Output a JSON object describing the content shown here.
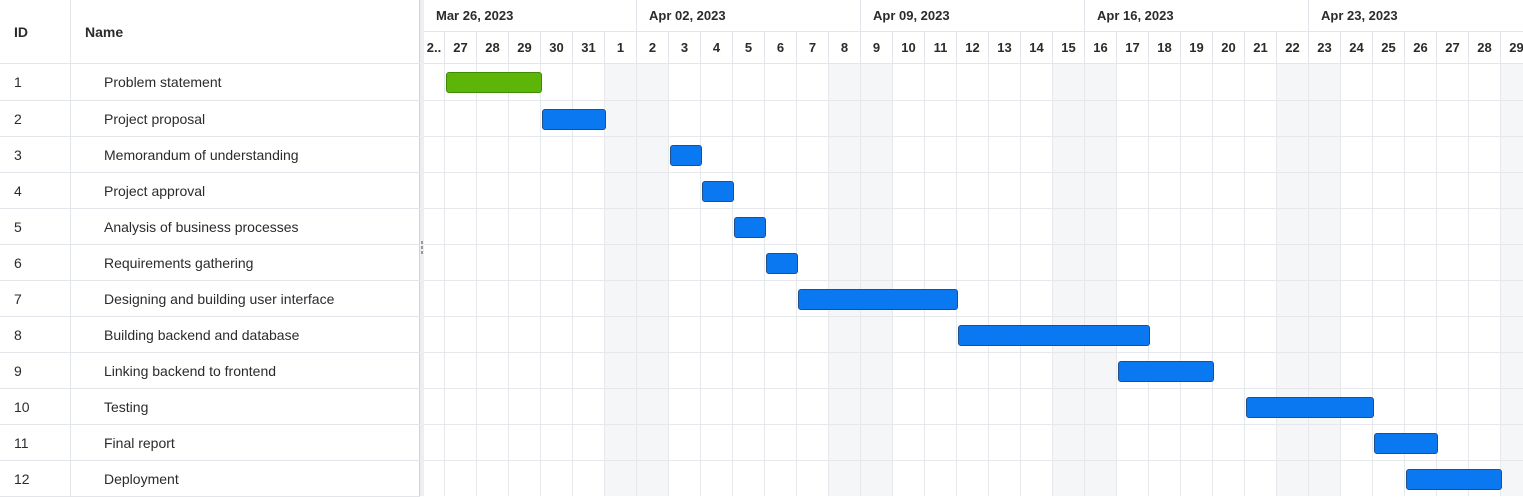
{
  "grid": {
    "columns": {
      "id": "ID",
      "name": "Name"
    }
  },
  "timeline": {
    "weeks": [
      "Apr 02, 2023",
      "Apr 09, 2023",
      "Apr 16, 2023",
      "Apr 23, 2023"
    ],
    "first_week": "Mar 26, 2023",
    "days": [
      "2..",
      "27",
      "28",
      "29",
      "30",
      "31",
      "1",
      "2",
      "3",
      "4",
      "5",
      "6",
      "7",
      "8",
      "9",
      "10",
      "11",
      "12",
      "13",
      "14",
      "15",
      "16",
      "17",
      "18",
      "19",
      "20",
      "21",
      "22",
      "23",
      "24",
      "25",
      "26",
      "27",
      "28",
      "29"
    ],
    "weekend_indices": [
      6,
      13,
      20,
      27,
      34
    ]
  },
  "colors": {
    "summary_bar": "#5db508",
    "task_bar": "#0a78f0"
  },
  "tasks": [
    {
      "id": "1",
      "name": "Problem statement",
      "start_index": 1,
      "duration_days": 3,
      "color": "summary"
    },
    {
      "id": "2",
      "name": "Project proposal",
      "start_index": 4,
      "duration_days": 2,
      "color": "task"
    },
    {
      "id": "3",
      "name": "Memorandum of understanding",
      "start_index": 8,
      "duration_days": 1,
      "color": "task"
    },
    {
      "id": "4",
      "name": "Project approval",
      "start_index": 9,
      "duration_days": 1,
      "color": "task"
    },
    {
      "id": "5",
      "name": "Analysis of business processes",
      "start_index": 10,
      "duration_days": 1,
      "color": "task"
    },
    {
      "id": "6",
      "name": "Requirements gathering",
      "start_index": 11,
      "duration_days": 1,
      "color": "task"
    },
    {
      "id": "7",
      "name": "Designing and building user interface",
      "start_index": 12,
      "duration_days": 5,
      "color": "task"
    },
    {
      "id": "8",
      "name": "Building backend and database",
      "start_index": 17,
      "duration_days": 6,
      "color": "task"
    },
    {
      "id": "9",
      "name": "Linking backend to frontend",
      "start_index": 22,
      "duration_days": 3,
      "color": "task"
    },
    {
      "id": "10",
      "name": "Testing",
      "start_index": 26,
      "duration_days": 4,
      "color": "task"
    },
    {
      "id": "11",
      "name": "Final report",
      "start_index": 30,
      "duration_days": 2,
      "color": "task"
    },
    {
      "id": "12",
      "name": "Deployment",
      "start_index": 31,
      "duration_days": 3,
      "color": "task"
    }
  ]
}
